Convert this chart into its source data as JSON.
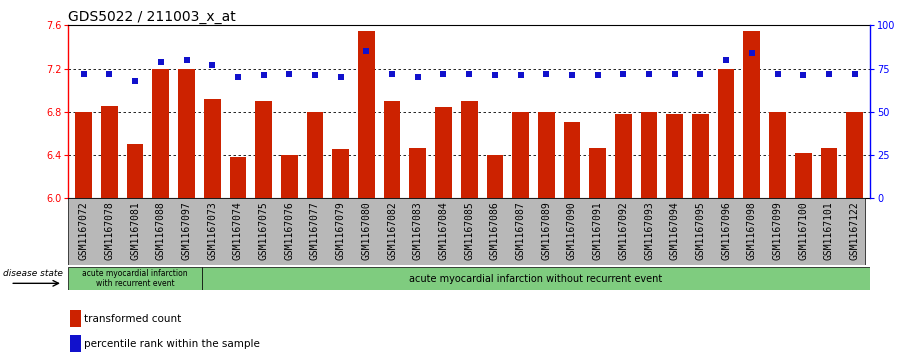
{
  "title": "GDS5022 / 211003_x_at",
  "samples": [
    "GSM1167072",
    "GSM1167078",
    "GSM1167081",
    "GSM1167088",
    "GSM1167097",
    "GSM1167073",
    "GSM1167074",
    "GSM1167075",
    "GSM1167076",
    "GSM1167077",
    "GSM1167079",
    "GSM1167080",
    "GSM1167082",
    "GSM1167083",
    "GSM1167084",
    "GSM1167085",
    "GSM1167086",
    "GSM1167087",
    "GSM1167089",
    "GSM1167090",
    "GSM1167091",
    "GSM1167092",
    "GSM1167093",
    "GSM1167094",
    "GSM1167095",
    "GSM1167096",
    "GSM1167098",
    "GSM1167099",
    "GSM1167100",
    "GSM1167101",
    "GSM1167122"
  ],
  "bar_values": [
    6.8,
    6.85,
    6.5,
    7.2,
    7.2,
    6.92,
    6.38,
    6.9,
    6.4,
    6.8,
    6.45,
    7.55,
    6.9,
    6.46,
    6.84,
    6.9,
    6.4,
    6.8,
    6.8,
    6.7,
    6.46,
    6.78,
    6.8,
    6.78,
    6.78,
    7.2,
    7.55,
    6.8,
    6.42,
    6.46,
    6.8
  ],
  "dot_values": [
    72,
    72,
    68,
    79,
    80,
    77,
    70,
    71,
    72,
    71,
    70,
    85,
    72,
    70,
    72,
    72,
    71,
    71,
    72,
    71,
    71,
    72,
    72,
    72,
    72,
    80,
    84,
    72,
    71,
    72,
    72
  ],
  "group1_count": 5,
  "group1_label": "acute myocardial infarction\nwith recurrent event",
  "group2_label": "acute myocardial infarction without recurrent event",
  "ylim_left": [
    6.0,
    7.6
  ],
  "ylim_right": [
    0,
    100
  ],
  "yticks_left": [
    6.0,
    6.4,
    6.8,
    7.2,
    7.6
  ],
  "yticks_right": [
    0,
    25,
    50,
    75,
    100
  ],
  "bar_color": "#cc2200",
  "dot_color": "#1111cc",
  "group_bg": "#7FCC7F",
  "disease_state_label": "disease state",
  "legend_bar_label": "transformed count",
  "legend_dot_label": "percentile rank within the sample",
  "tick_label_bg": "#b8b8b8",
  "title_fontsize": 10,
  "tick_fontsize": 7,
  "legend_fontsize": 7.5
}
